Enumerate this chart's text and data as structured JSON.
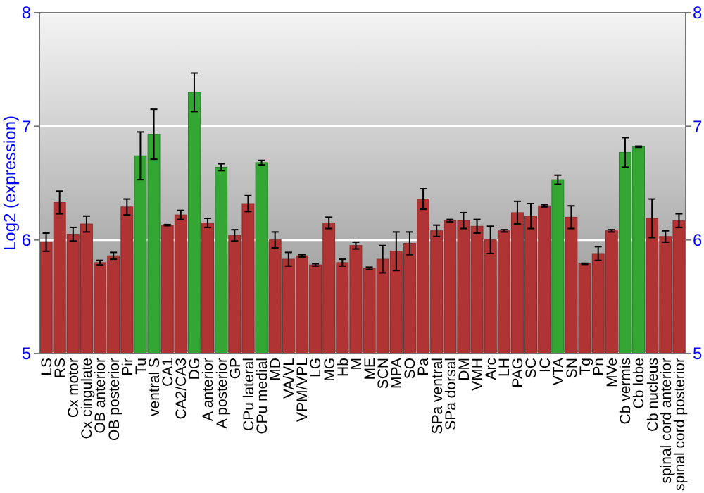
{
  "chart_data": {
    "type": "bar",
    "ylabel": "Log2 (expression)",
    "categories": [
      "LS",
      "RS",
      "Cx motor",
      "Cx cingulate",
      "OB anterior",
      "OB posterior",
      "Pir",
      "Tu",
      "ventral S",
      "CA1",
      "CA2/CA3",
      "DG",
      "A anterior",
      "A posterior",
      "GP",
      "CPu lateral",
      "CPu medial",
      "MD",
      "VA/VL",
      "VPM/VPL",
      "LG",
      "MG",
      "Hb",
      "M",
      "ME",
      "SCN",
      "MPA",
      "SO",
      "Pa",
      "SPa ventral",
      "SPa dorsal",
      "DM",
      "VMH",
      "Arc",
      "LH",
      "PAG",
      "SC",
      "IC",
      "VTA",
      "SN",
      "Tg",
      "Pn",
      "MVe",
      "Cb vermis",
      "Cb lobe",
      "Cb nucleus",
      "spinal cord anterior",
      "spinal cord posterior"
    ],
    "values": [
      5.98,
      6.33,
      6.05,
      6.14,
      5.8,
      5.86,
      6.29,
      6.74,
      6.93,
      6.13,
      6.22,
      7.3,
      6.15,
      6.64,
      6.04,
      6.32,
      6.68,
      6.0,
      5.83,
      5.86,
      5.78,
      6.15,
      5.8,
      5.95,
      5.75,
      5.83,
      5.9,
      5.97,
      6.36,
      6.08,
      6.17,
      6.17,
      6.12,
      6.0,
      6.08,
      6.24,
      6.21,
      6.3,
      6.53,
      6.2,
      5.79,
      5.88,
      6.08,
      6.77,
      6.82,
      6.19,
      6.03,
      6.17
    ],
    "errors": [
      0.08,
      0.1,
      0.06,
      0.07,
      0.02,
      0.03,
      0.07,
      0.21,
      0.22,
      0.005,
      0.04,
      0.17,
      0.04,
      0.03,
      0.05,
      0.07,
      0.02,
      0.07,
      0.06,
      0.01,
      0.01,
      0.05,
      0.03,
      0.03,
      0.01,
      0.12,
      0.17,
      0.1,
      0.09,
      0.05,
      0.01,
      0.07,
      0.06,
      0.12,
      0.01,
      0.1,
      0.11,
      0.01,
      0.04,
      0.1,
      0.005,
      0.06,
      0.01,
      0.13,
      0.005,
      0.17,
      0.05,
      0.06
    ],
    "colors": [
      "#b03434",
      "#b03434",
      "#b03434",
      "#b03434",
      "#b03434",
      "#b03434",
      "#b03434",
      "#33a633",
      "#33a633",
      "#b03434",
      "#b03434",
      "#33a633",
      "#b03434",
      "#33a633",
      "#b03434",
      "#b03434",
      "#33a633",
      "#b03434",
      "#b03434",
      "#b03434",
      "#b03434",
      "#b03434",
      "#b03434",
      "#b03434",
      "#b03434",
      "#b03434",
      "#b03434",
      "#b03434",
      "#b03434",
      "#b03434",
      "#b03434",
      "#b03434",
      "#b03434",
      "#b03434",
      "#b03434",
      "#b03434",
      "#b03434",
      "#b03434",
      "#33a633",
      "#b03434",
      "#b03434",
      "#b03434",
      "#b03434",
      "#33a633",
      "#33a633",
      "#b03434",
      "#b03434",
      "#b03434"
    ],
    "ylim": [
      5,
      8
    ],
    "yticks": [
      5,
      6,
      7,
      8
    ],
    "y2lim": [
      5,
      8
    ],
    "y2ticks": [
      5,
      6,
      7,
      8
    ],
    "grid": "y"
  }
}
